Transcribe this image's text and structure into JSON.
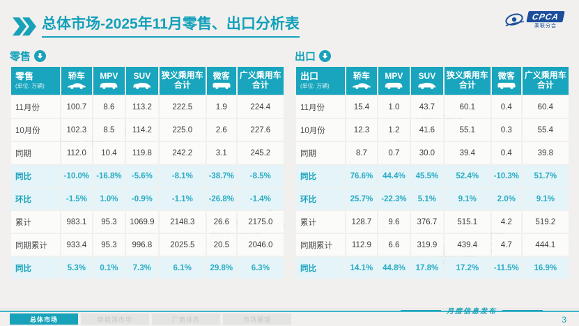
{
  "header": {
    "title": "总体市场-2025年11月零售、出口分析表",
    "logo_text": "CPCA",
    "logo_subtext": "乘联分会"
  },
  "unit_label": "(单位: 万辆)",
  "columns": [
    {
      "label": "轿车",
      "icon": "sedan-icon"
    },
    {
      "label": "MPV",
      "icon": "mpv-icon"
    },
    {
      "label": "SUV",
      "icon": "suv-icon"
    },
    {
      "label": "狭义乘用车 合计",
      "icon": null
    },
    {
      "label": "微客",
      "icon": "microvan-icon"
    },
    {
      "label": "广义乘用车 合计",
      "icon": null
    }
  ],
  "tables": [
    {
      "section_label": "零售",
      "corner_label": "零售",
      "rows": [
        {
          "label": "11月份",
          "type": "data",
          "values": [
            "100.7",
            "8.6",
            "113.2",
            "222.5",
            "1.9",
            "224.4"
          ]
        },
        {
          "label": "10月份",
          "type": "data",
          "values": [
            "102.3",
            "8.5",
            "114.2",
            "225.0",
            "2.6",
            "227.6"
          ]
        },
        {
          "label": "同期",
          "type": "data",
          "values": [
            "112.0",
            "10.4",
            "119.8",
            "242.2",
            "3.1",
            "245.2"
          ]
        },
        {
          "label": "同比",
          "type": "pct",
          "values": [
            "-10.0%",
            "-16.8%",
            "-5.6%",
            "-8.1%",
            "-38.7%",
            "-8.5%"
          ]
        },
        {
          "label": "环比",
          "type": "pct",
          "values": [
            "-1.5%",
            "1.0%",
            "-0.9%",
            "-1.1%",
            "-26.8%",
            "-1.4%"
          ]
        },
        {
          "label": "累计",
          "type": "data",
          "values": [
            "983.1",
            "95.3",
            "1069.9",
            "2148.3",
            "26.6",
            "2175.0"
          ]
        },
        {
          "label": "同期累计",
          "type": "data",
          "values": [
            "933.4",
            "95.3",
            "996.8",
            "2025.5",
            "20.5",
            "2046.0"
          ]
        },
        {
          "label": "同比",
          "type": "pct",
          "values": [
            "5.3%",
            "0.1%",
            "7.3%",
            "6.1%",
            "29.8%",
            "6.3%"
          ]
        }
      ]
    },
    {
      "section_label": "出口",
      "corner_label": "出口",
      "rows": [
        {
          "label": "11月份",
          "type": "data",
          "values": [
            "15.4",
            "1.0",
            "43.7",
            "60.1",
            "0.4",
            "60.4"
          ]
        },
        {
          "label": "10月份",
          "type": "data",
          "values": [
            "12.3",
            "1.2",
            "41.6",
            "55.1",
            "0.3",
            "55.4"
          ]
        },
        {
          "label": "同期",
          "type": "data",
          "values": [
            "8.7",
            "0.7",
            "30.0",
            "39.4",
            "0.4",
            "39.8"
          ]
        },
        {
          "label": "同比",
          "type": "pct",
          "values": [
            "76.6%",
            "44.4%",
            "45.5%",
            "52.4%",
            "-10.3%",
            "51.7%"
          ]
        },
        {
          "label": "环比",
          "type": "pct",
          "values": [
            "25.7%",
            "-22.3%",
            "5.1%",
            "9.1%",
            "2.0%",
            "9.1%"
          ]
        },
        {
          "label": "累计",
          "type": "data",
          "values": [
            "128.7",
            "9.6",
            "376.7",
            "515.1",
            "4.2",
            "519.2"
          ]
        },
        {
          "label": "同期累计",
          "type": "data",
          "values": [
            "112.9",
            "6.6",
            "319.9",
            "439.4",
            "4.7",
            "444.1"
          ]
        },
        {
          "label": "同比",
          "type": "pct",
          "values": [
            "14.1%",
            "44.8%",
            "17.8%",
            "17.2%",
            "-11.5%",
            "16.9%"
          ]
        }
      ]
    }
  ],
  "footer": {
    "tabs": [
      "总体市场",
      "新能源市场",
      "厂商排名",
      "市场展望"
    ],
    "note": "月度信息发布",
    "page_number": "3"
  },
  "watermark": {
    "text": "乘联会"
  },
  "colors": {
    "accent_teal": "#17a2ba",
    "header_teal": "#18a5bd",
    "pct_row_bg": "#e4f4f8",
    "logo_blue": "#1b4f9c"
  }
}
